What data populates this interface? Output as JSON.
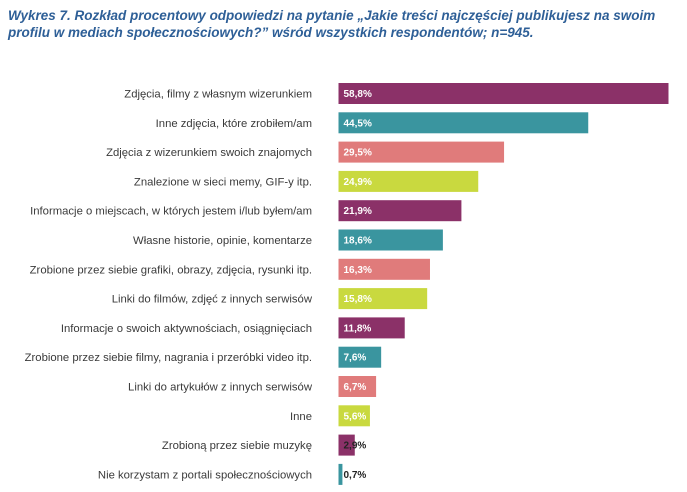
{
  "chart_data": {
    "type": "bar",
    "orientation": "horizontal",
    "title": "Wykres 7. Rozkład procentowy odpowiedzi na pytanie „Jakie treści najczęściej publikujesz na swoim profilu w mediach społecznościowych?” wśród wszystkich respondentów; n=945.",
    "categories": [
      "Zdjęcia, filmy z własnym wizerunkiem",
      "Inne zdjęcia, które zrobiłem/am",
      "Zdjęcia z wizerunkiem swoich znajomych",
      "Znalezione w sieci memy, GIF-y itp.",
      "Informacje o miejscach, w których jestem i/lub byłem/am",
      "Własne historie, opinie, komentarze",
      "Zrobione przez siebie grafiki, obrazy, zdjęcia, rysunki itp.",
      "Linki do filmów, zdjęć z innych serwisów",
      "Informacje o swoich aktywnościach, osiągnięciach",
      "Zrobione przez siebie filmy, nagrania i przeróbki video itp.",
      "Linki do artykułów z innych serwisów",
      "Inne",
      "Zrobioną przez siebie muzykę",
      "Nie korzystam z portali społecznościowych"
    ],
    "values": [
      58.8,
      44.5,
      29.5,
      24.9,
      21.9,
      18.6,
      16.3,
      15.8,
      11.8,
      7.6,
      6.7,
      5.6,
      2.9,
      0.7
    ],
    "value_labels": [
      "58,8%",
      "44,5%",
      "29,5%",
      "24,9%",
      "21,9%",
      "18,6%",
      "16,3%",
      "15,8%",
      "11,8%",
      "7,6%",
      "6,7%",
      "5,6%",
      "2,9%",
      "0,7%"
    ],
    "bar_colors": [
      "#8b3168",
      "#3a959f",
      "#e07b7b",
      "#c9d93f",
      "#8b3168",
      "#3a959f",
      "#e07b7b",
      "#c9d93f",
      "#8b3168",
      "#3a959f",
      "#e07b7b",
      "#c9d93f",
      "#8b3168",
      "#3a959f"
    ],
    "xlabel": "",
    "ylabel": "",
    "grid": false,
    "legend": "none"
  }
}
